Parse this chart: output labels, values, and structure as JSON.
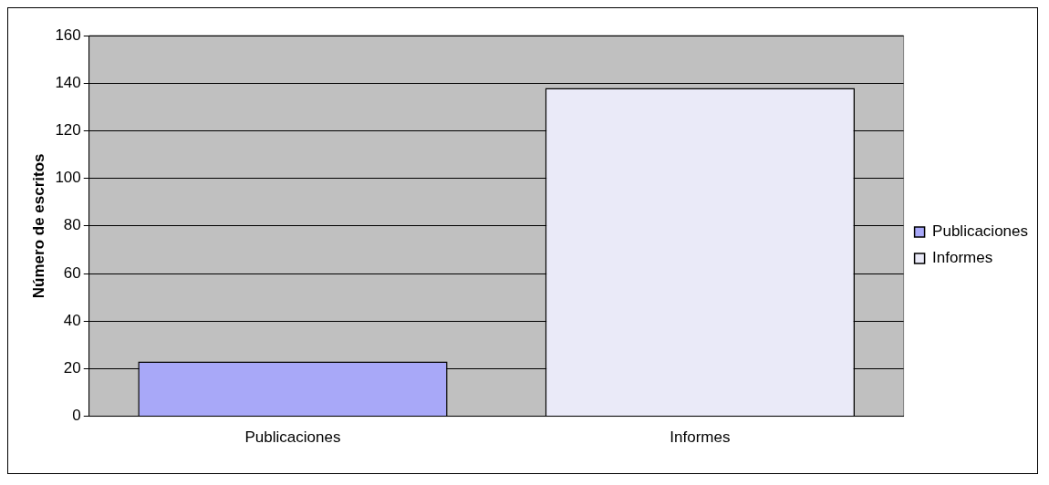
{
  "chart_data": {
    "type": "bar",
    "ylabel": "Número de escritos",
    "categories": [
      "Publicaciones",
      "Informes"
    ],
    "series": [
      {
        "name": "Publicaciones",
        "color": "#a8a8f8",
        "values": [
          23,
          null
        ]
      },
      {
        "name": "Informes",
        "color": "#eaeaf8",
        "values": [
          null,
          138
        ]
      }
    ],
    "ylim": [
      0,
      160
    ],
    "yticks": [
      0,
      20,
      40,
      60,
      80,
      100,
      120,
      140,
      160
    ],
    "grid": "y",
    "legend": "right"
  }
}
